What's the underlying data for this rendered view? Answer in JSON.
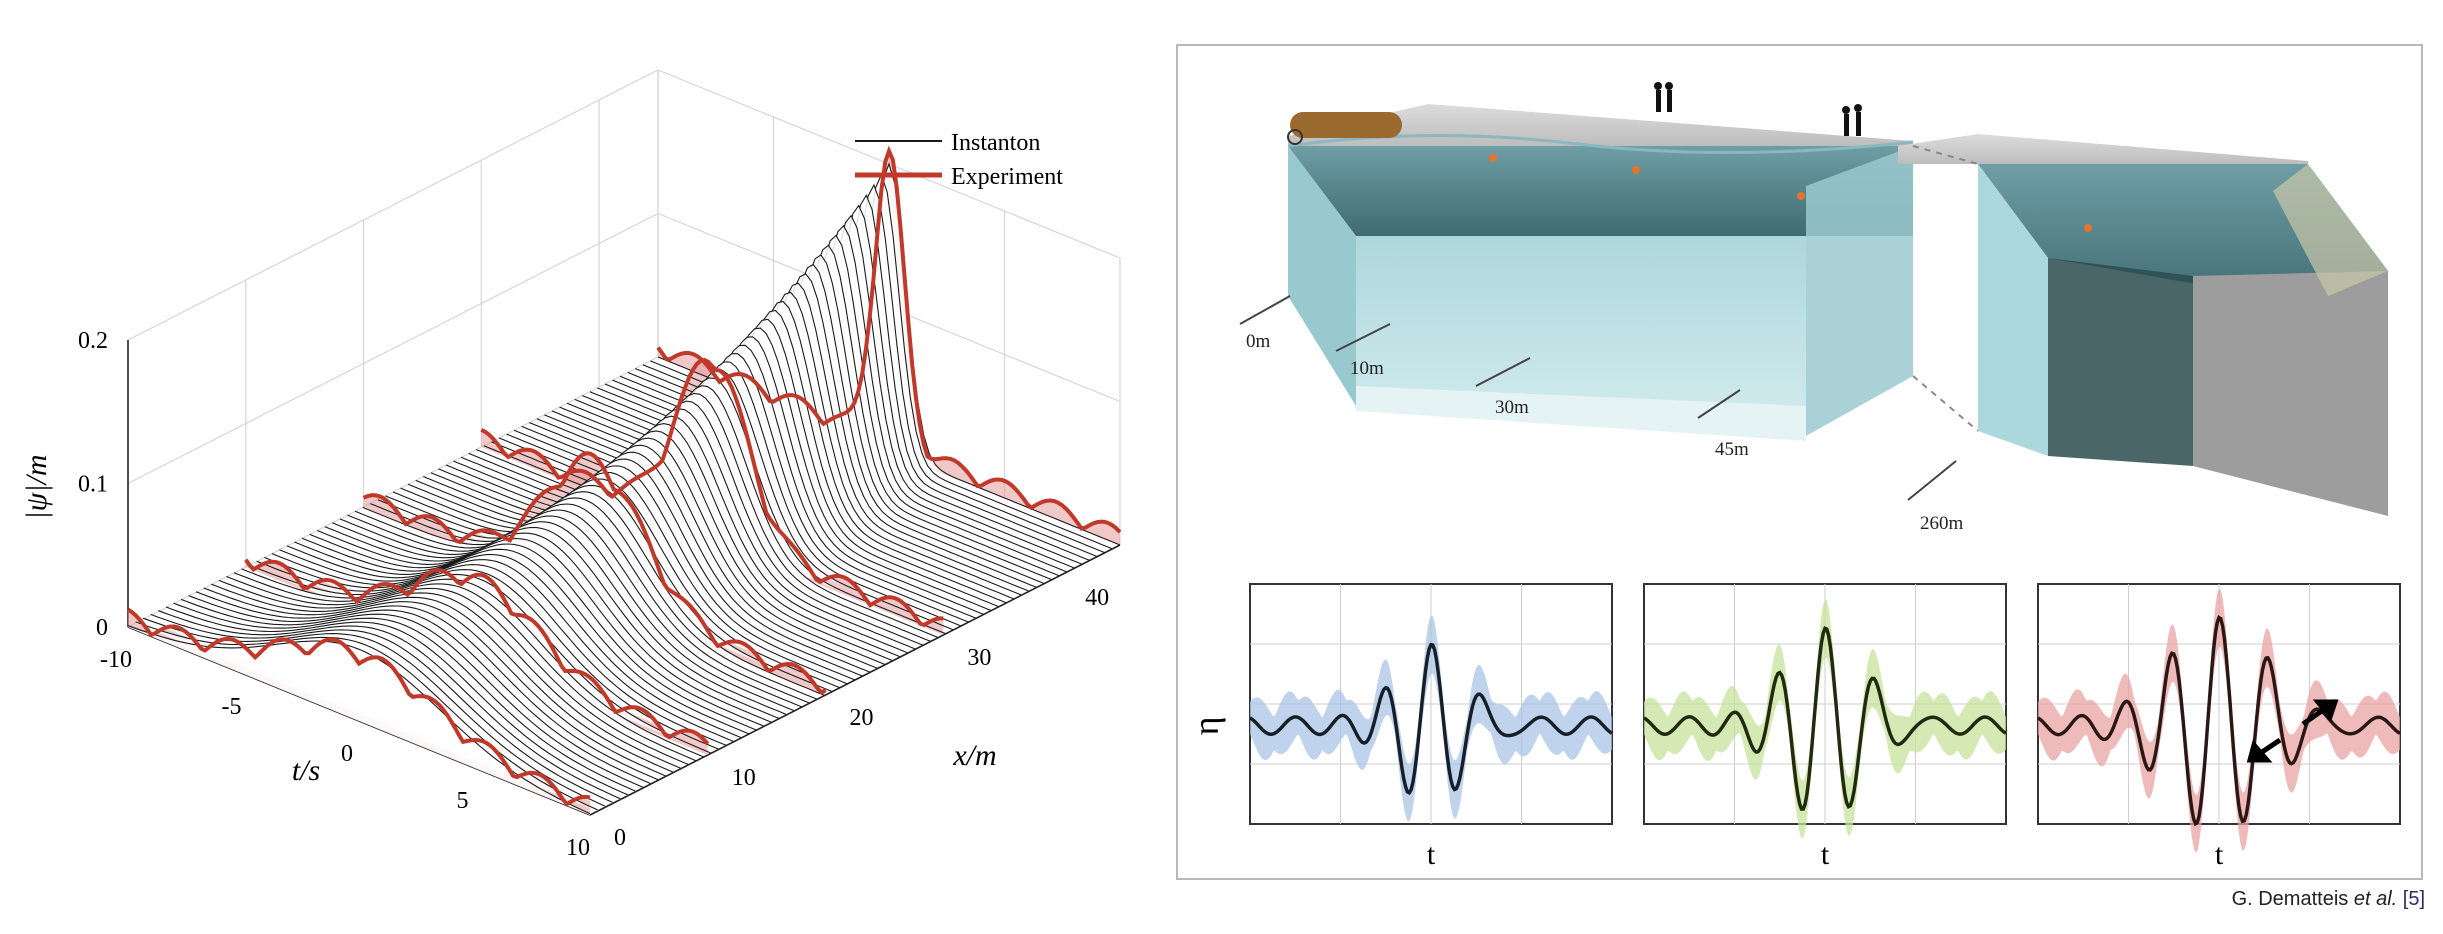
{
  "chart_data": [
    {
      "type": "line",
      "title": "",
      "zlabel": "|ψ|/m",
      "xlabel": "t/s",
      "ylabel": "x/m",
      "t_ticks": [
        -10,
        -5,
        0,
        5,
        10
      ],
      "x_ticks": [
        0,
        10,
        20,
        30,
        40
      ],
      "z_ticks": [
        0,
        0.1,
        0.2
      ],
      "t_range": [
        -10,
        10
      ],
      "x_range": [
        0,
        45
      ],
      "z_range": [
        0,
        0.2
      ],
      "legend_position": "top-right",
      "grid": true,
      "series": [
        {
          "name": "Instanton",
          "color": "#1a1a1a"
        },
        {
          "name": "Experiment",
          "color": "#c0392b"
        }
      ],
      "instanton": {
        "peak_t": 0,
        "peak_x": 45,
        "peak_amplitude": 0.2,
        "initial_amplitude": 0.05,
        "initial_width_s": 5
      },
      "experiment": {
        "slice_x": [
          0,
          10,
          20,
          30,
          45
        ],
        "peak_amplitudes": [
          0.04,
          0.05,
          0.09,
          0.12,
          0.2
        ]
      }
    },
    {
      "type": "line",
      "panels": 3,
      "xlabel": "t",
      "ylabel": "η",
      "panel_colors": [
        "#2f6fb7",
        "#7fb800",
        "#c0392b"
      ],
      "band_colors": [
        "#a9c6e6",
        "#c6e29a",
        "#eaa3a3"
      ],
      "peak_eta": [
        0.75,
        0.9,
        1.0
      ],
      "envelope_width": [
        0.14,
        0.16,
        0.2
      ],
      "carrier_freq": [
        7.5,
        7.5,
        7.5
      ]
    }
  ],
  "tank_labels": [
    "0m",
    "10m",
    "30m",
    "45m",
    "260m"
  ],
  "credit": {
    "author": "G. Dematteis",
    "etal": "et al.",
    "ref_open": "[",
    "ref": "5",
    "ref_close": "]"
  }
}
